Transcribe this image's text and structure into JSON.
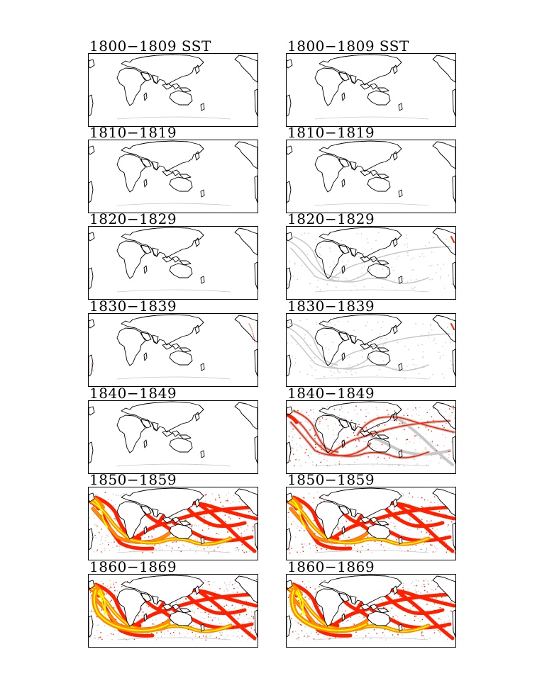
{
  "colors": {
    "land_outline": "#000000",
    "sea_background": "#ffffff",
    "density_low": "#c8c8c8",
    "density_mid": "#ff2000",
    "density_high": "#ff8c00",
    "density_peak": "#ffff00"
  },
  "columns": [
    {
      "panels": [
        {
          "title": "1800−1809 SST",
          "level": 0
        },
        {
          "title": "1810−1819",
          "level": 0
        },
        {
          "title": "1820−1829",
          "level": 0
        },
        {
          "title": "1830−1839",
          "level": 1
        },
        {
          "title": "1840−1849",
          "level": 0
        },
        {
          "title": "1850−1859",
          "level": 4
        },
        {
          "title": "1860−1869",
          "level": 5
        }
      ]
    },
    {
      "panels": [
        {
          "title": "1800−1809 SST",
          "level": 0
        },
        {
          "title": "1810−1819",
          "level": 0
        },
        {
          "title": "1820−1829",
          "level": 2
        },
        {
          "title": "1830−1839",
          "level": 2
        },
        {
          "title": "1840−1849",
          "level": 3
        },
        {
          "title": "1850−1859",
          "level": 4
        },
        {
          "title": "1860−1869",
          "level": 5
        }
      ]
    }
  ]
}
